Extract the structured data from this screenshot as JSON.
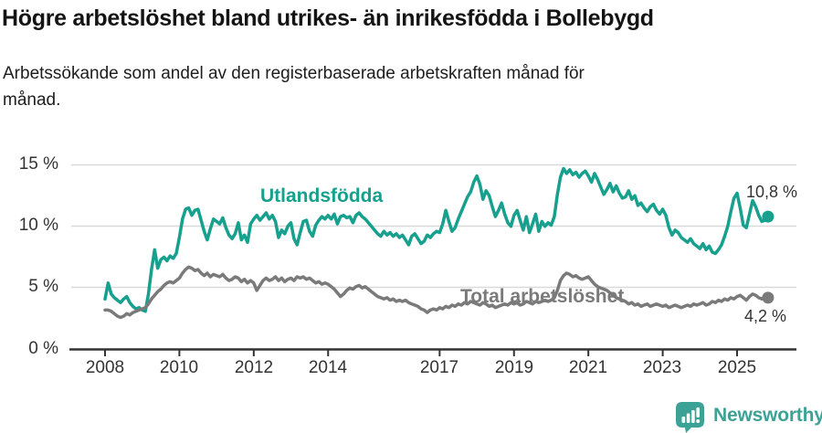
{
  "colors": {
    "utlandsfodda_line": "#17A08E",
    "total_line": "#7A7A7A",
    "brand_teal": "#3CA295",
    "gridline": "#D9D9D9",
    "axis_line": "#333333",
    "value_label": "#333333",
    "title_text": "#141414"
  },
  "footer": {
    "brand": "Newsworthy"
  },
  "chart_data": {
    "type": "line",
    "title": "Högre arbetslöshet bland utrikes- än inrikesfödda i Bollebygd",
    "subtitle_lines": [
      "Arbetssökande som andel av den registerbaserade arbetskraften månad för",
      "månad."
    ],
    "x_start": "2008-01",
    "x_end": "2025-11",
    "months_per_point": 1,
    "ylim": [
      0,
      15
    ],
    "grid": "horizontal",
    "legend_position": "inline-labels",
    "y_tick_labels": [
      "15 %",
      "10 %",
      "5 %",
      "0 %"
    ],
    "x_tick_labels": [
      "2008",
      "2010",
      "2012",
      "2014",
      "2017",
      "2019",
      "2021",
      "2023",
      "2025"
    ],
    "series": [
      {
        "name": "Utlandsfödda",
        "color": "#17A08E",
        "end_label": "10,8 %",
        "end_value": 10.8,
        "values": [
          4.1,
          5.4,
          4.5,
          4.2,
          4.0,
          3.8,
          4.1,
          4.3,
          3.8,
          3.5,
          3.3,
          3.4,
          3.2,
          3.1,
          4.5,
          6.5,
          8.1,
          6.6,
          7.3,
          7.5,
          7.2,
          7.6,
          7.4,
          7.8,
          9.1,
          10.6,
          11.4,
          11.5,
          10.9,
          11.3,
          11.4,
          10.5,
          9.6,
          8.9,
          9.8,
          10.6,
          10.4,
          10.2,
          10.7,
          9.9,
          9.3,
          9.0,
          9.4,
          10.3,
          8.9,
          9.3,
          8.7,
          10.2,
          10.6,
          10.9,
          10.5,
          10.8,
          11.1,
          10.6,
          10.9,
          10.4,
          9.1,
          9.7,
          9.4,
          10.0,
          10.3,
          9.0,
          8.5,
          9.5,
          10.4,
          10.5,
          9.6,
          9.2,
          10.1,
          10.5,
          10.8,
          10.6,
          10.9,
          10.6,
          11.0,
          10.2,
          10.8,
          10.9,
          10.7,
          10.8,
          10.3,
          10.9,
          11.1,
          10.8,
          10.6,
          10.3,
          10.0,
          9.7,
          9.4,
          9.2,
          9.6,
          9.3,
          9.5,
          9.2,
          9.4,
          9.1,
          9.3,
          8.9,
          8.5,
          9.2,
          9.4,
          9.0,
          8.6,
          8.8,
          9.3,
          9.1,
          9.4,
          9.6,
          9.5,
          10.2,
          11.3,
          10.4,
          9.6,
          9.9,
          10.6,
          11.2,
          11.8,
          12.4,
          12.8,
          13.6,
          14.1,
          13.4,
          12.2,
          12.9,
          12.5,
          11.6,
          10.8,
          11.3,
          11.9,
          11.0,
          10.3,
          10.0,
          10.9,
          11.3,
          10.5,
          9.7,
          10.8,
          9.5,
          10.2,
          11.0,
          9.6,
          10.4,
          10.0,
          10.3,
          10.1,
          10.8,
          12.6,
          14.0,
          14.7,
          14.3,
          14.6,
          14.2,
          14.4,
          14.0,
          14.3,
          14.5,
          14.1,
          13.6,
          14.3,
          13.8,
          13.2,
          12.6,
          13.0,
          13.5,
          12.8,
          13.3,
          12.7,
          12.3,
          12.4,
          12.9,
          12.2,
          12.5,
          11.7,
          11.9,
          11.5,
          11.2,
          11.6,
          11.8,
          11.3,
          11.0,
          11.4,
          10.9,
          9.9,
          9.3,
          9.7,
          9.5,
          9.1,
          8.9,
          8.7,
          9.0,
          8.6,
          8.4,
          8.2,
          8.6,
          8.1,
          8.4,
          7.9,
          7.8,
          8.1,
          8.5,
          9.2,
          10.0,
          11.2,
          12.3,
          12.7,
          11.5,
          10.1,
          9.9,
          11.0,
          12.1,
          11.6,
          10.9,
          10.4,
          10.5,
          10.8
        ]
      },
      {
        "name": "Total arbetslöshet",
        "color": "#7A7A7A",
        "end_label": "4,2 %",
        "end_value": 4.2,
        "values": [
          3.2,
          3.2,
          3.1,
          2.9,
          2.7,
          2.6,
          2.7,
          2.9,
          2.8,
          3.0,
          3.1,
          3.2,
          3.3,
          3.4,
          3.7,
          4.1,
          4.4,
          4.7,
          4.9,
          5.2,
          5.4,
          5.5,
          5.4,
          5.6,
          5.8,
          6.2,
          6.5,
          6.7,
          6.6,
          6.4,
          6.5,
          6.2,
          6.0,
          6.2,
          5.9,
          6.1,
          6.0,
          5.9,
          6.1,
          5.8,
          5.6,
          5.7,
          5.9,
          5.8,
          5.5,
          5.7,
          5.4,
          5.6,
          5.4,
          4.8,
          5.2,
          5.6,
          5.8,
          5.6,
          5.7,
          5.9,
          5.6,
          5.8,
          5.5,
          5.7,
          5.8,
          5.6,
          5.9,
          5.8,
          5.9,
          5.7,
          5.8,
          5.6,
          5.4,
          5.5,
          5.3,
          5.4,
          5.3,
          5.1,
          4.9,
          4.6,
          4.3,
          4.5,
          4.8,
          5.0,
          4.9,
          5.1,
          5.2,
          5.0,
          5.1,
          4.9,
          4.7,
          4.5,
          4.3,
          4.2,
          4.1,
          4.2,
          4.0,
          4.1,
          3.9,
          4.0,
          3.9,
          4.0,
          3.8,
          3.7,
          3.6,
          3.5,
          3.3,
          3.2,
          3.0,
          3.2,
          3.3,
          3.2,
          3.4,
          3.3,
          3.5,
          3.4,
          3.6,
          3.5,
          3.7,
          3.6,
          3.8,
          3.7,
          3.9,
          3.8,
          3.7,
          3.6,
          3.8,
          3.7,
          3.5,
          3.6,
          3.4,
          3.5,
          3.6,
          3.7,
          3.6,
          3.8,
          3.7,
          3.8,
          3.6,
          3.7,
          3.9,
          3.8,
          3.7,
          3.9,
          3.8,
          3.9,
          4.0,
          3.9,
          4.0,
          4.2,
          4.8,
          5.6,
          6.0,
          6.2,
          6.1,
          5.9,
          6.0,
          5.8,
          5.7,
          5.8,
          5.9,
          5.6,
          5.3,
          5.1,
          5.0,
          4.9,
          4.8,
          4.6,
          4.4,
          4.2,
          4.1,
          4.0,
          3.9,
          3.7,
          3.8,
          3.6,
          3.7,
          3.5,
          3.6,
          3.7,
          3.5,
          3.6,
          3.7,
          3.6,
          3.5,
          3.6,
          3.4,
          3.5,
          3.6,
          3.5,
          3.4,
          3.5,
          3.6,
          3.5,
          3.7,
          3.6,
          3.7,
          3.8,
          3.6,
          3.7,
          3.9,
          3.8,
          4.0,
          3.9,
          4.1,
          4.0,
          4.2,
          4.1,
          4.3,
          4.4,
          4.2,
          4.0,
          4.3,
          4.5,
          4.4,
          4.2,
          4.1,
          4.3,
          4.2
        ]
      }
    ]
  }
}
